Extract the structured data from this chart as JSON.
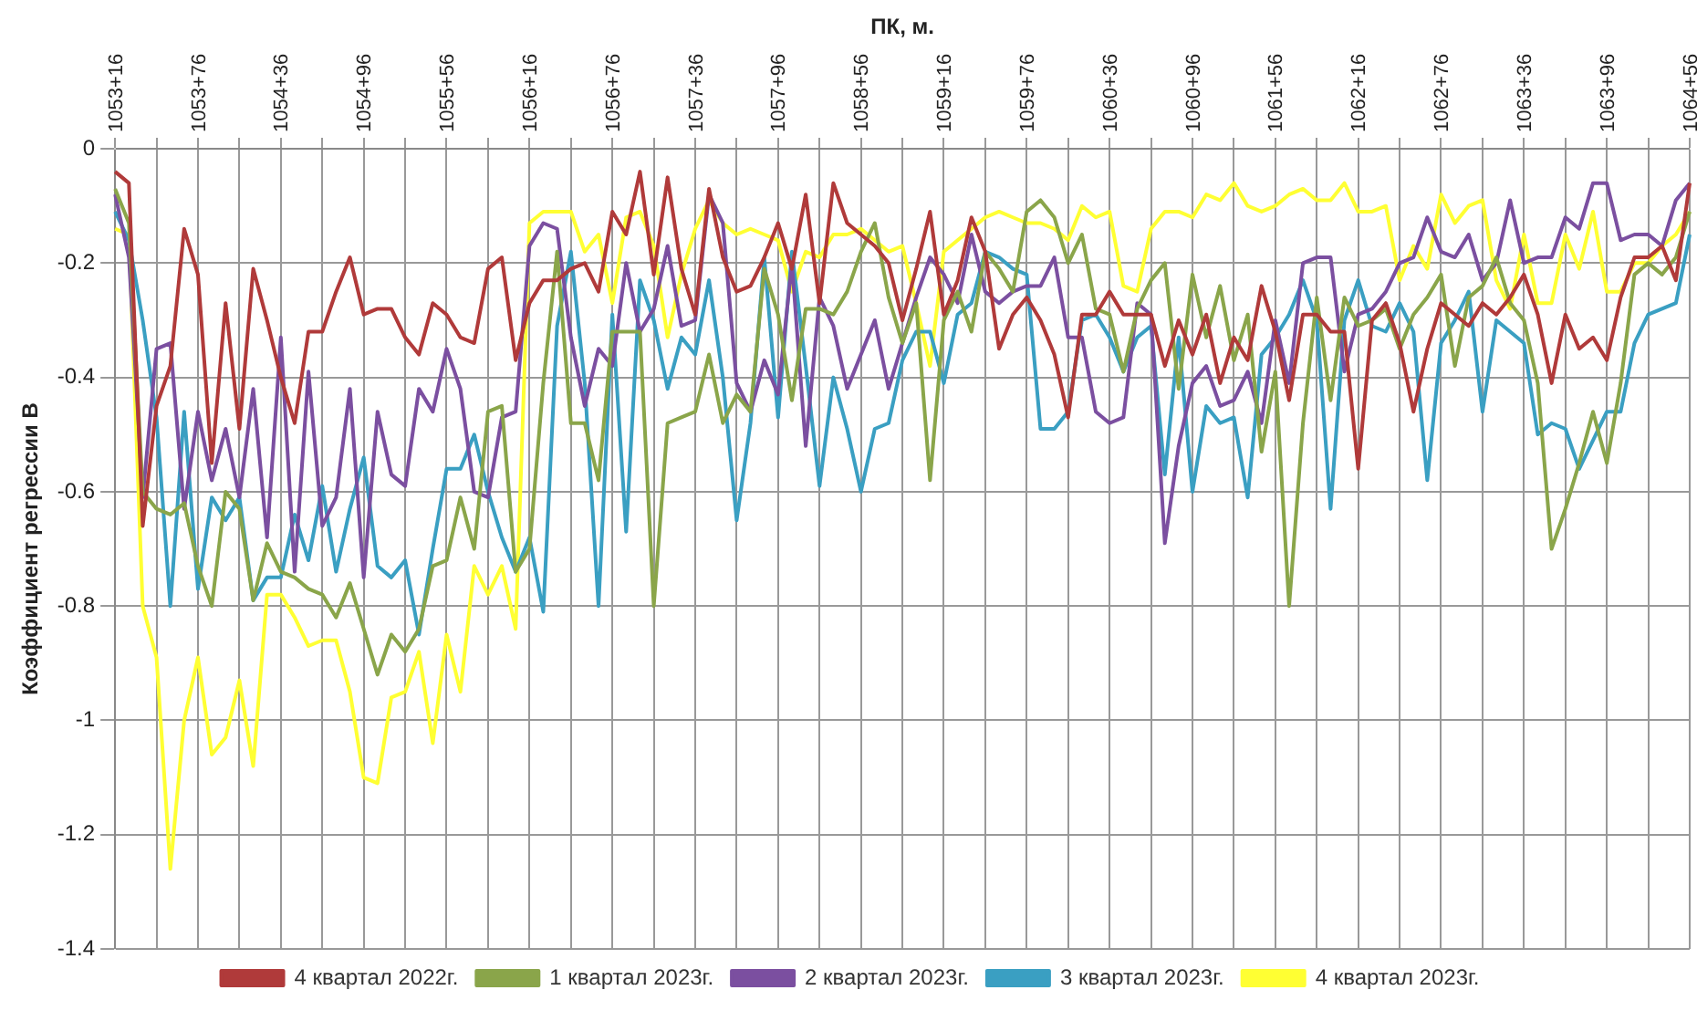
{
  "chart_data": {
    "type": "line",
    "xlabel": "ПК, м.",
    "ylabel": "Коэффициент регрессии В",
    "categories": [
      "1053+16",
      null,
      null,
      null,
      null,
      null,
      "1053+76",
      null,
      null,
      null,
      null,
      null,
      "1054+36",
      null,
      null,
      null,
      null,
      null,
      "1054+96",
      null,
      null,
      null,
      null,
      null,
      "1055+56",
      null,
      null,
      null,
      null,
      null,
      "1056+16",
      null,
      null,
      null,
      null,
      null,
      "1056+76",
      null,
      null,
      null,
      null,
      null,
      "1057+36",
      null,
      null,
      null,
      null,
      null,
      "1057+96",
      null,
      null,
      null,
      null,
      null,
      "1058+56",
      null,
      null,
      null,
      null,
      null,
      "1059+16",
      null,
      null,
      null,
      null,
      null,
      "1059+76",
      null,
      null,
      null,
      null,
      null,
      "1060+36",
      null,
      null,
      null,
      null,
      null,
      "1060+96",
      null,
      null,
      null,
      null,
      null,
      "1061+56",
      null,
      null,
      null,
      null,
      null,
      "1062+16",
      null,
      null,
      null,
      null,
      null,
      "1062+76",
      null,
      null,
      null,
      null,
      null,
      "1063+36",
      null,
      null,
      null,
      null,
      null,
      "1063+96",
      null,
      null,
      null,
      null,
      null,
      "1064+56"
    ],
    "ylim": [
      -1.4,
      0
    ],
    "yticks": [
      0,
      -0.2,
      -0.4,
      -0.6,
      -0.8,
      -1,
      -1.2,
      -1.4
    ],
    "grid": true,
    "legend": "bottom",
    "marker": "none",
    "series": [
      {
        "name": "4 квартал 2022г.",
        "color": "#b03a3a",
        "values": [
          -0.04,
          -0.06,
          -0.66,
          -0.45,
          -0.38,
          -0.14,
          -0.22,
          -0.55,
          -0.27,
          -0.49,
          -0.21,
          -0.3,
          -0.4,
          -0.48,
          -0.32,
          -0.32,
          -0.25,
          -0.19,
          -0.29,
          -0.28,
          -0.28,
          -0.33,
          -0.36,
          -0.27,
          -0.29,
          -0.33,
          -0.34,
          -0.21,
          -0.19,
          -0.37,
          -0.27,
          -0.23,
          -0.23,
          -0.21,
          -0.2,
          -0.25,
          -0.11,
          -0.15,
          -0.04,
          -0.22,
          -0.05,
          -0.21,
          -0.29,
          -0.07,
          -0.19,
          -0.25,
          -0.24,
          -0.19,
          -0.13,
          -0.21,
          -0.08,
          -0.27,
          -0.06,
          -0.13,
          -0.15,
          -0.17,
          -0.2,
          -0.3,
          -0.21,
          -0.11,
          -0.29,
          -0.23,
          -0.12,
          -0.18,
          -0.35,
          -0.29,
          -0.26,
          -0.3,
          -0.36,
          -0.47,
          -0.29,
          -0.29,
          -0.25,
          -0.29,
          -0.29,
          -0.29,
          -0.38,
          -0.3,
          -0.36,
          -0.29,
          -0.41,
          -0.33,
          -0.37,
          -0.24,
          -0.32,
          -0.44,
          -0.29,
          -0.29,
          -0.32,
          -0.32,
          -0.56,
          -0.3,
          -0.27,
          -0.34,
          -0.46,
          -0.35,
          -0.27,
          -0.29,
          -0.31,
          -0.27,
          -0.29,
          -0.26,
          -0.22,
          -0.29,
          -0.41,
          -0.29,
          -0.35,
          -0.33,
          -0.37,
          -0.26,
          -0.19,
          -0.19,
          -0.17,
          -0.23,
          -0.06
        ]
      },
      {
        "name": "1 квартал 2023г.",
        "color": "#8aa54a",
        "values": [
          -0.07,
          -0.13,
          -0.6,
          -0.63,
          -0.64,
          -0.62,
          -0.73,
          -0.8,
          -0.6,
          -0.63,
          -0.79,
          -0.69,
          -0.74,
          -0.75,
          -0.77,
          -0.78,
          -0.82,
          -0.76,
          -0.84,
          -0.92,
          -0.85,
          -0.88,
          -0.84,
          -0.73,
          -0.72,
          -0.61,
          -0.7,
          -0.46,
          -0.45,
          -0.74,
          -0.7,
          -0.41,
          -0.18,
          -0.48,
          -0.48,
          -0.58,
          -0.32,
          -0.32,
          -0.32,
          -0.8,
          -0.48,
          -0.47,
          -0.46,
          -0.36,
          -0.48,
          -0.43,
          -0.46,
          -0.21,
          -0.29,
          -0.44,
          -0.28,
          -0.28,
          -0.29,
          -0.25,
          -0.18,
          -0.13,
          -0.26,
          -0.34,
          -0.27,
          -0.58,
          -0.3,
          -0.25,
          -0.32,
          -0.18,
          -0.21,
          -0.25,
          -0.11,
          -0.09,
          -0.12,
          -0.2,
          -0.15,
          -0.28,
          -0.29,
          -0.39,
          -0.28,
          -0.23,
          -0.2,
          -0.42,
          -0.22,
          -0.33,
          -0.24,
          -0.37,
          -0.29,
          -0.53,
          -0.39,
          -0.8,
          -0.48,
          -0.26,
          -0.44,
          -0.26,
          -0.31,
          -0.3,
          -0.28,
          -0.35,
          -0.29,
          -0.26,
          -0.22,
          -0.38,
          -0.26,
          -0.24,
          -0.19,
          -0.27,
          -0.3,
          -0.41,
          -0.7,
          -0.63,
          -0.55,
          -0.46,
          -0.55,
          -0.41,
          -0.22,
          -0.2,
          -0.22,
          -0.19,
          -0.11
        ]
      },
      {
        "name": "2 квартал 2023г.",
        "color": "#7b4fa0",
        "values": [
          -0.08,
          -0.19,
          -0.61,
          -0.35,
          -0.34,
          -0.63,
          -0.46,
          -0.58,
          -0.49,
          -0.61,
          -0.42,
          -0.68,
          -0.33,
          -0.74,
          -0.39,
          -0.66,
          -0.61,
          -0.42,
          -0.75,
          -0.46,
          -0.57,
          -0.59,
          -0.42,
          -0.46,
          -0.35,
          -0.42,
          -0.6,
          -0.61,
          -0.47,
          -0.46,
          -0.17,
          -0.13,
          -0.14,
          -0.33,
          -0.45,
          -0.35,
          -0.38,
          -0.2,
          -0.32,
          -0.28,
          -0.17,
          -0.31,
          -0.3,
          -0.08,
          -0.13,
          -0.41,
          -0.46,
          -0.37,
          -0.43,
          -0.2,
          -0.52,
          -0.26,
          -0.31,
          -0.42,
          -0.36,
          -0.3,
          -0.42,
          -0.34,
          -0.26,
          -0.19,
          -0.22,
          -0.27,
          -0.15,
          -0.25,
          -0.27,
          -0.25,
          -0.24,
          -0.24,
          -0.19,
          -0.33,
          -0.33,
          -0.46,
          -0.48,
          -0.47,
          -0.27,
          -0.29,
          -0.69,
          -0.52,
          -0.41,
          -0.38,
          -0.45,
          -0.44,
          -0.39,
          -0.48,
          -0.3,
          -0.41,
          -0.2,
          -0.19,
          -0.19,
          -0.39,
          -0.29,
          -0.28,
          -0.25,
          -0.2,
          -0.19,
          -0.12,
          -0.18,
          -0.19,
          -0.15,
          -0.23,
          -0.2,
          -0.09,
          -0.2,
          -0.19,
          -0.19,
          -0.12,
          -0.14,
          -0.06,
          -0.06,
          -0.16,
          -0.15,
          -0.15,
          -0.17,
          -0.09,
          -0.06
        ]
      },
      {
        "name": "3 квартал 2023г.",
        "color": "#3a9fc2",
        "values": [
          -0.11,
          -0.16,
          -0.3,
          -0.47,
          -0.8,
          -0.46,
          -0.77,
          -0.61,
          -0.65,
          -0.61,
          -0.79,
          -0.75,
          -0.75,
          -0.64,
          -0.72,
          -0.59,
          -0.74,
          -0.63,
          -0.54,
          -0.73,
          -0.75,
          -0.72,
          -0.85,
          -0.7,
          -0.56,
          -0.56,
          -0.5,
          -0.6,
          -0.68,
          -0.74,
          -0.68,
          -0.81,
          -0.31,
          -0.18,
          -0.41,
          -0.8,
          -0.29,
          -0.67,
          -0.23,
          -0.3,
          -0.42,
          -0.33,
          -0.36,
          -0.23,
          -0.4,
          -0.65,
          -0.48,
          -0.19,
          -0.47,
          -0.18,
          -0.38,
          -0.59,
          -0.4,
          -0.49,
          -0.6,
          -0.49,
          -0.48,
          -0.37,
          -0.32,
          -0.32,
          -0.41,
          -0.29,
          -0.27,
          -0.18,
          -0.19,
          -0.21,
          -0.22,
          -0.49,
          -0.49,
          -0.46,
          -0.3,
          -0.29,
          -0.33,
          -0.39,
          -0.33,
          -0.31,
          -0.57,
          -0.33,
          -0.6,
          -0.45,
          -0.48,
          -0.47,
          -0.61,
          -0.36,
          -0.33,
          -0.29,
          -0.23,
          -0.3,
          -0.63,
          -0.3,
          -0.23,
          -0.31,
          -0.32,
          -0.27,
          -0.32,
          -0.58,
          -0.34,
          -0.3,
          -0.25,
          -0.46,
          -0.3,
          -0.32,
          -0.34,
          -0.5,
          -0.48,
          -0.49,
          -0.56,
          -0.51,
          -0.46,
          -0.46,
          -0.34,
          -0.29,
          -0.28,
          -0.27,
          -0.15
        ]
      },
      {
        "name": "4 квартал 2023г.",
        "color": "#ffff33",
        "values": [
          -0.14,
          -0.15,
          -0.8,
          -0.89,
          -1.26,
          -1,
          -0.89,
          -1.06,
          -1.03,
          -0.93,
          -1.08,
          -0.78,
          -0.78,
          -0.82,
          -0.87,
          -0.86,
          -0.86,
          -0.95,
          -1.1,
          -1.11,
          -0.96,
          -0.95,
          -0.88,
          -1.04,
          -0.85,
          -0.95,
          -0.73,
          -0.78,
          -0.73,
          -0.84,
          -0.13,
          -0.11,
          -0.11,
          -0.11,
          -0.18,
          -0.15,
          -0.27,
          -0.12,
          -0.11,
          -0.17,
          -0.33,
          -0.22,
          -0.14,
          -0.09,
          -0.13,
          -0.15,
          -0.14,
          -0.15,
          -0.16,
          -0.25,
          -0.18,
          -0.19,
          -0.15,
          -0.15,
          -0.14,
          -0.16,
          -0.18,
          -0.17,
          -0.27,
          -0.38,
          -0.18,
          -0.16,
          -0.14,
          -0.12,
          -0.11,
          -0.12,
          -0.13,
          -0.13,
          -0.14,
          -0.16,
          -0.1,
          -0.12,
          -0.11,
          -0.24,
          -0.25,
          -0.14,
          -0.11,
          -0.11,
          -0.12,
          -0.08,
          -0.09,
          -0.06,
          -0.1,
          -0.11,
          -0.1,
          -0.08,
          -0.07,
          -0.09,
          -0.09,
          -0.06,
          -0.11,
          -0.11,
          -0.1,
          -0.23,
          -0.17,
          -0.21,
          -0.08,
          -0.13,
          -0.1,
          -0.09,
          -0.23,
          -0.28,
          -0.15,
          -0.27,
          -0.27,
          -0.15,
          -0.21,
          -0.11,
          -0.25,
          -0.25,
          -0.2,
          -0.2,
          -0.17,
          -0.15,
          -0.11
        ]
      }
    ]
  }
}
